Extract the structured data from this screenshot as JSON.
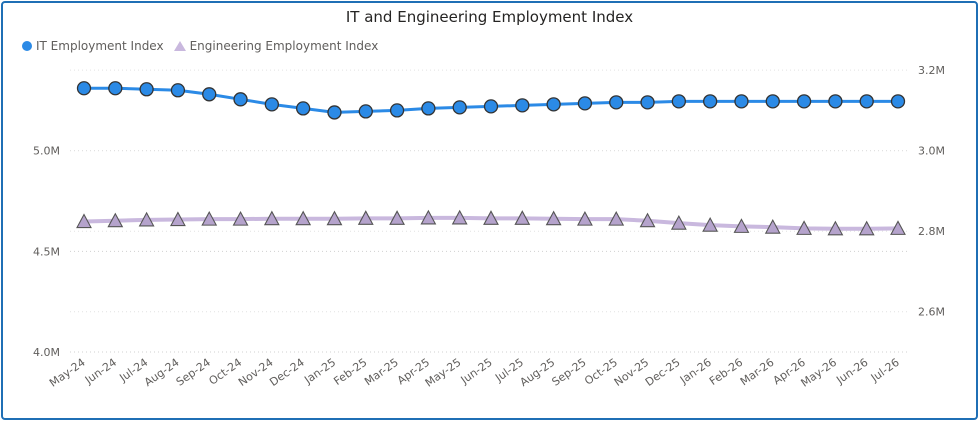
{
  "chart_data": {
    "type": "line",
    "title": "IT and Engineering Employment Index",
    "categories": [
      "May-24",
      "Jun-24",
      "Jul-24",
      "Aug-24",
      "Sep-24",
      "Oct-24",
      "Nov-24",
      "Dec-24",
      "Jan-25",
      "Feb-25",
      "Mar-25",
      "Apr-25",
      "May-25",
      "Jun-25",
      "Jul-25",
      "Aug-25",
      "Sep-25",
      "Oct-25",
      "Nov-25",
      "Dec-25",
      "Jan-26",
      "Feb-26",
      "Mar-26",
      "Apr-26",
      "May-26",
      "Jun-26",
      "Jul-26"
    ],
    "series": [
      {
        "name": "IT Employment Index",
        "axis": "left",
        "color": "#2b8ae6",
        "marker": "circle",
        "values": [
          5.31,
          5.31,
          5.305,
          5.3,
          5.28,
          5.255,
          5.23,
          5.21,
          5.19,
          5.195,
          5.2,
          5.21,
          5.215,
          5.22,
          5.225,
          5.23,
          5.235,
          5.24,
          5.24,
          5.245,
          5.245,
          5.245,
          5.245,
          5.245,
          5.245,
          5.245,
          5.245
        ]
      },
      {
        "name": "Engineering Employment Index",
        "axis": "right",
        "color": "#c9b8de",
        "marker": "triangle",
        "values": [
          2.824,
          2.826,
          2.828,
          2.829,
          2.83,
          2.83,
          2.831,
          2.831,
          2.831,
          2.832,
          2.832,
          2.833,
          2.833,
          2.832,
          2.832,
          2.831,
          2.83,
          2.83,
          2.826,
          2.82,
          2.815,
          2.812,
          2.81,
          2.807,
          2.806,
          2.806,
          2.807
        ]
      }
    ],
    "y_left": {
      "min": 4.0,
      "max": 5.5,
      "ticks": [
        4.0,
        4.5,
        5.0
      ],
      "tick_labels": [
        "4.0M",
        "4.5M",
        "5.0M"
      ]
    },
    "y_right": {
      "min": 2.5,
      "max": 3.25,
      "ticks": [
        2.6,
        2.8,
        3.0,
        3.2
      ],
      "tick_labels": [
        "2.6M",
        "2.8M",
        "3.0M",
        "3.2M"
      ]
    },
    "grid": true,
    "legend_position": "top-left"
  }
}
